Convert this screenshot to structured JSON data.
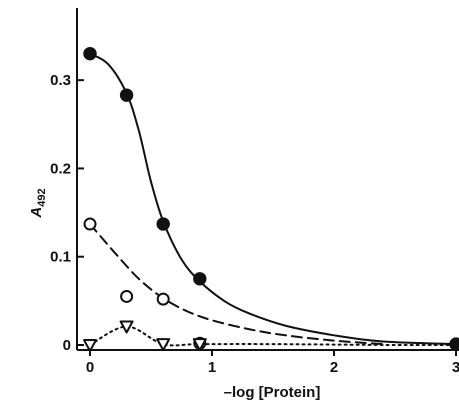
{
  "chart_data": {
    "type": "scatter",
    "xlabel": "–log [Protein]",
    "ylabel": "A",
    "ylabel_sub": "492",
    "xlim": [
      0,
      3
    ],
    "ylim": [
      0,
      0.35
    ],
    "x_ticks": [
      0,
      1,
      2,
      3
    ],
    "x_tick_labels": [
      "0",
      "1",
      "2",
      "3"
    ],
    "y_ticks": [
      0,
      0.1,
      0.2,
      0.3
    ],
    "y_tick_labels": [
      "0",
      "0.1",
      "0.2",
      "0.3"
    ],
    "grid": false,
    "series": [
      {
        "marker": "filled-circle",
        "line_style": "solid",
        "points": [
          [
            0,
            0.33
          ],
          [
            0.3,
            0.283
          ],
          [
            0.6,
            0.137
          ],
          [
            0.9,
            0.075
          ],
          [
            3,
            0.001
          ]
        ],
        "curve": [
          [
            0,
            0.33
          ],
          [
            0.15,
            0.318
          ],
          [
            0.3,
            0.285
          ],
          [
            0.4,
            0.243
          ],
          [
            0.5,
            0.185
          ],
          [
            0.6,
            0.14
          ],
          [
            0.75,
            0.097
          ],
          [
            0.9,
            0.072
          ],
          [
            1.1,
            0.05
          ],
          [
            1.3,
            0.036
          ],
          [
            1.6,
            0.022
          ],
          [
            2.0,
            0.011
          ],
          [
            2.4,
            0.004
          ],
          [
            3,
            0.001
          ]
        ]
      },
      {
        "marker": "open-circle",
        "line_style": "dashed",
        "points": [
          [
            0,
            0.137
          ],
          [
            0.3,
            0.055
          ],
          [
            0.6,
            0.052
          ],
          [
            0.9,
            0.002
          ]
        ],
        "curve": [
          [
            0,
            0.137
          ],
          [
            0.2,
            0.105
          ],
          [
            0.4,
            0.075
          ],
          [
            0.6,
            0.053
          ],
          [
            0.8,
            0.038
          ],
          [
            1.0,
            0.028
          ],
          [
            1.3,
            0.018
          ],
          [
            1.6,
            0.011
          ],
          [
            2.0,
            0.005
          ],
          [
            2.4,
            0.001
          ]
        ]
      },
      {
        "marker": "open-triangle-down",
        "line_style": "dotted",
        "points": [
          [
            0,
            0.0
          ],
          [
            0.3,
            0.021
          ],
          [
            0.6,
            0.001
          ],
          [
            0.9,
            0.001
          ]
        ],
        "curve": [
          [
            0,
            0.0
          ],
          [
            0.3,
            0.021
          ],
          [
            0.6,
            0.001
          ],
          [
            0.9,
            0.001
          ],
          [
            1.5,
            0.001
          ],
          [
            2.5,
            0.0
          ],
          [
            3,
            0.0
          ]
        ]
      }
    ]
  }
}
